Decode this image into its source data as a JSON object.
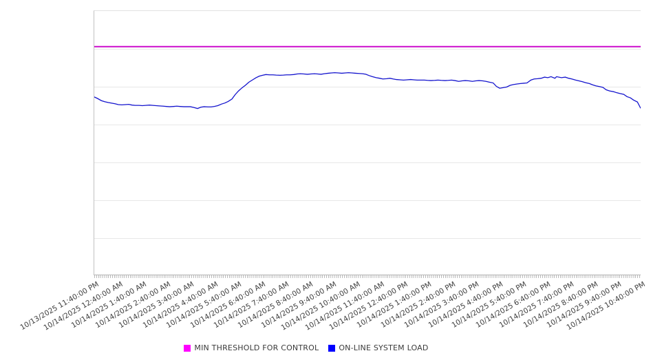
{
  "chart_data": {
    "type": "line",
    "title": "",
    "x_axis": {
      "tick_labels": [
        "10/13/2025 11:40:00 PM",
        "10/14/2025 12:40:00 AM",
        "10/14/2025 1:40:00 AM",
        "10/14/2025 2:40:00 AM",
        "10/14/2025 3:40:00 AM",
        "10/14/2025 4:40:00 AM",
        "10/14/2025 5:40:00 AM",
        "10/14/2025 6:40:00 AM",
        "10/14/2025 7:40:00 AM",
        "10/14/2025 8:40:00 AM",
        "10/14/2025 9:40:00 AM",
        "10/14/2025 10:40:00 AM",
        "10/14/2025 11:40:00 AM",
        "10/14/2025 12:40:00 PM",
        "10/14/2025 1:40:00 PM",
        "10/14/2025 2:40:00 PM",
        "10/14/2025 3:40:00 PM",
        "10/14/2025 4:40:00 PM",
        "10/14/2025 5:40:00 PM",
        "10/14/2025 6:40:00 PM",
        "10/14/2025 7:40:00 PM",
        "10/14/2025 8:40:00 PM",
        "10/14/2025 9:40:00 PM",
        "10/14/2025 10:40:00 PM"
      ],
      "major_interval": "1 hour",
      "minor_tick_interval": "5 minutes",
      "label_rotation_deg": -30
    },
    "y_axis": {
      "tick_labels_visible": false,
      "normalized_range": [
        0,
        100
      ],
      "horizontal_gridlines": 7
    },
    "grid": "horizontal only",
    "legend_position": "bottom-center",
    "series": [
      {
        "name": "MIN THRESHOLD FOR CONTROL",
        "kind": "constant-line",
        "swatch_color": "#ff00ff",
        "line_color": "#cc0acc",
        "line_width": 2,
        "value": 86.5
      },
      {
        "name": "ON-LINE SYSTEM LOAD",
        "kind": "line",
        "swatch_color": "#0000ff",
        "line_color": "#1212cd",
        "line_width": 1.3,
        "hourly_values": [
          67.4,
          64.6,
          64.1,
          63.8,
          63.7,
          63.6,
          69.1,
          75.5,
          75.7,
          76.0,
          76.5,
          76.4,
          74.5,
          73.9,
          73.8,
          73.7,
          73.4,
          70.9,
          72.5,
          74.8,
          74.3,
          72.0,
          69.0,
          63.1
        ],
        "points": [
          [
            0.0,
            67.4
          ],
          [
            0.006,
            66.8
          ],
          [
            0.013,
            66.0
          ],
          [
            0.019,
            65.6
          ],
          [
            0.025,
            65.3
          ],
          [
            0.031,
            65.1
          ],
          [
            0.038,
            64.8
          ],
          [
            0.044,
            64.5
          ],
          [
            0.05,
            64.4
          ],
          [
            0.057,
            64.5
          ],
          [
            0.063,
            64.6
          ],
          [
            0.069,
            64.3
          ],
          [
            0.075,
            64.2
          ],
          [
            0.082,
            64.2
          ],
          [
            0.088,
            64.1
          ],
          [
            0.094,
            64.2
          ],
          [
            0.101,
            64.3
          ],
          [
            0.107,
            64.2
          ],
          [
            0.113,
            64.1
          ],
          [
            0.119,
            64.0
          ],
          [
            0.126,
            63.9
          ],
          [
            0.132,
            63.8
          ],
          [
            0.138,
            63.7
          ],
          [
            0.145,
            63.8
          ],
          [
            0.151,
            63.9
          ],
          [
            0.157,
            63.8
          ],
          [
            0.164,
            63.7
          ],
          [
            0.17,
            63.7
          ],
          [
            0.176,
            63.7
          ],
          [
            0.182,
            63.4
          ],
          [
            0.189,
            63.0
          ],
          [
            0.195,
            63.5
          ],
          [
            0.201,
            63.7
          ],
          [
            0.208,
            63.6
          ],
          [
            0.214,
            63.6
          ],
          [
            0.22,
            63.8
          ],
          [
            0.226,
            64.1
          ],
          [
            0.233,
            64.7
          ],
          [
            0.239,
            65.1
          ],
          [
            0.245,
            65.7
          ],
          [
            0.252,
            66.6
          ],
          [
            0.258,
            68.3
          ],
          [
            0.264,
            69.7
          ],
          [
            0.27,
            70.8
          ],
          [
            0.277,
            71.9
          ],
          [
            0.283,
            73.0
          ],
          [
            0.289,
            73.8
          ],
          [
            0.296,
            74.7
          ],
          [
            0.302,
            75.3
          ],
          [
            0.308,
            75.6
          ],
          [
            0.314,
            75.9
          ],
          [
            0.321,
            75.8
          ],
          [
            0.327,
            75.8
          ],
          [
            0.333,
            75.7
          ],
          [
            0.34,
            75.6
          ],
          [
            0.346,
            75.7
          ],
          [
            0.352,
            75.8
          ],
          [
            0.358,
            75.8
          ],
          [
            0.365,
            75.9
          ],
          [
            0.371,
            76.1
          ],
          [
            0.377,
            76.2
          ],
          [
            0.384,
            76.1
          ],
          [
            0.39,
            76.0
          ],
          [
            0.396,
            76.1
          ],
          [
            0.403,
            76.2
          ],
          [
            0.409,
            76.1
          ],
          [
            0.415,
            76.0
          ],
          [
            0.421,
            76.2
          ],
          [
            0.428,
            76.4
          ],
          [
            0.434,
            76.5
          ],
          [
            0.44,
            76.6
          ],
          [
            0.447,
            76.5
          ],
          [
            0.453,
            76.4
          ],
          [
            0.459,
            76.5
          ],
          [
            0.465,
            76.6
          ],
          [
            0.472,
            76.5
          ],
          [
            0.478,
            76.4
          ],
          [
            0.484,
            76.3
          ],
          [
            0.491,
            76.2
          ],
          [
            0.497,
            76.0
          ],
          [
            0.503,
            75.5
          ],
          [
            0.509,
            75.1
          ],
          [
            0.516,
            74.7
          ],
          [
            0.522,
            74.5
          ],
          [
            0.528,
            74.2
          ],
          [
            0.535,
            74.3
          ],
          [
            0.541,
            74.5
          ],
          [
            0.547,
            74.2
          ],
          [
            0.553,
            74.0
          ],
          [
            0.56,
            73.9
          ],
          [
            0.566,
            73.8
          ],
          [
            0.572,
            73.9
          ],
          [
            0.579,
            74.0
          ],
          [
            0.585,
            73.9
          ],
          [
            0.591,
            73.8
          ],
          [
            0.597,
            73.8
          ],
          [
            0.604,
            73.8
          ],
          [
            0.61,
            73.7
          ],
          [
            0.616,
            73.6
          ],
          [
            0.623,
            73.7
          ],
          [
            0.629,
            73.8
          ],
          [
            0.635,
            73.7
          ],
          [
            0.642,
            73.6
          ],
          [
            0.648,
            73.7
          ],
          [
            0.654,
            73.8
          ],
          [
            0.66,
            73.6
          ],
          [
            0.667,
            73.3
          ],
          [
            0.673,
            73.5
          ],
          [
            0.679,
            73.6
          ],
          [
            0.686,
            73.5
          ],
          [
            0.692,
            73.3
          ],
          [
            0.698,
            73.5
          ],
          [
            0.704,
            73.6
          ],
          [
            0.711,
            73.5
          ],
          [
            0.717,
            73.3
          ],
          [
            0.723,
            73.0
          ],
          [
            0.73,
            72.7
          ],
          [
            0.736,
            71.4
          ],
          [
            0.742,
            70.7
          ],
          [
            0.748,
            70.9
          ],
          [
            0.755,
            71.2
          ],
          [
            0.761,
            71.8
          ],
          [
            0.767,
            72.1
          ],
          [
            0.774,
            72.3
          ],
          [
            0.78,
            72.5
          ],
          [
            0.786,
            72.6
          ],
          [
            0.792,
            72.7
          ],
          [
            0.799,
            73.8
          ],
          [
            0.805,
            74.2
          ],
          [
            0.811,
            74.3
          ],
          [
            0.818,
            74.5
          ],
          [
            0.824,
            74.9
          ],
          [
            0.83,
            74.7
          ],
          [
            0.836,
            75.1
          ],
          [
            0.843,
            74.5
          ],
          [
            0.846,
            75.1
          ],
          [
            0.855,
            74.7
          ],
          [
            0.862,
            74.9
          ],
          [
            0.868,
            74.5
          ],
          [
            0.874,
            74.2
          ],
          [
            0.881,
            73.8
          ],
          [
            0.887,
            73.5
          ],
          [
            0.893,
            73.2
          ],
          [
            0.899,
            72.8
          ],
          [
            0.906,
            72.5
          ],
          [
            0.912,
            72.0
          ],
          [
            0.918,
            71.6
          ],
          [
            0.925,
            71.3
          ],
          [
            0.931,
            71.0
          ],
          [
            0.937,
            70.1
          ],
          [
            0.943,
            69.7
          ],
          [
            0.95,
            69.4
          ],
          [
            0.956,
            69.0
          ],
          [
            0.962,
            68.7
          ],
          [
            0.969,
            68.4
          ],
          [
            0.975,
            67.5
          ],
          [
            0.981,
            67.1
          ],
          [
            0.987,
            66.2
          ],
          [
            0.994,
            65.5
          ],
          [
            1.0,
            63.1
          ]
        ]
      }
    ]
  },
  "colors": {
    "background": "#ffffff",
    "plot_border": "#c2c2c2",
    "gridline": "#e7e7e7",
    "axis_line": "#b3b3b3",
    "minor_tick": "#b9b9b9",
    "label_text": "#3d3d3d",
    "threshold_line": "#cc0acc",
    "load_line": "#1212cd",
    "legend_threshold_swatch": "#ff00ff",
    "legend_load_swatch": "#0000ff"
  }
}
